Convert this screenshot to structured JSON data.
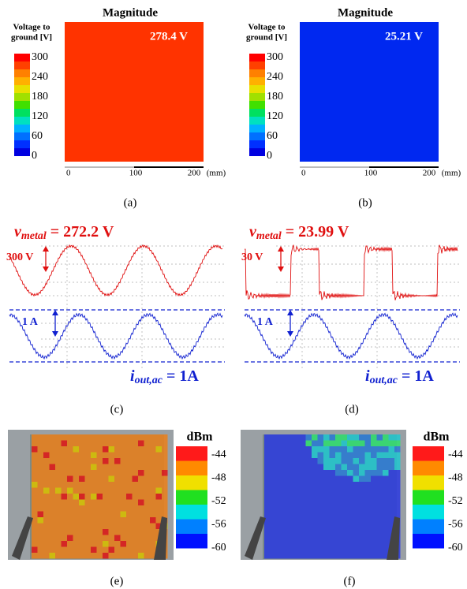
{
  "panels": [
    {
      "label": "(a)",
      "title": "Magnitude",
      "colorbar_title": [
        "Voltage to",
        "ground [V]"
      ],
      "colorbar_ticks": [
        "300",
        "240",
        "180",
        "120",
        "60",
        "0"
      ],
      "value": "278.4 V",
      "scale": [
        "0",
        "100",
        "200",
        "(mm)"
      ]
    },
    {
      "label": "(b)",
      "title": "Magnitude",
      "colorbar_title": [
        "Voltage to",
        "ground [V]"
      ],
      "colorbar_ticks": [
        "300",
        "240",
        "180",
        "120",
        "60",
        "0"
      ],
      "value": "25.21 V",
      "scale": [
        "0",
        "100",
        "200",
        "(mm)"
      ]
    },
    {
      "label": "(c)",
      "voltage": {
        "symbol": "v",
        "subscript": "metal",
        "rest": " = 272.2 V"
      },
      "voltage_scale": "300 V",
      "current_scale": "1 A",
      "current": {
        "symbol": "i",
        "subscript": "out,ac",
        "rest": " = 1A"
      }
    },
    {
      "label": "(d)",
      "voltage": {
        "symbol": "v",
        "subscript": "metal",
        "rest": " = 23.99 V"
      },
      "voltage_scale": "30 V",
      "current_scale": "1 A",
      "current": {
        "symbol": "i",
        "subscript": "out,ac",
        "rest": " = 1A"
      }
    },
    {
      "label": "(e)",
      "unit": "dBm",
      "ticks": [
        "-44",
        "-48",
        "-52",
        "-56",
        "-60"
      ]
    },
    {
      "label": "(f)",
      "unit": "dBm",
      "ticks": [
        "-44",
        "-48",
        "-52",
        "-56",
        "-60"
      ]
    }
  ]
}
